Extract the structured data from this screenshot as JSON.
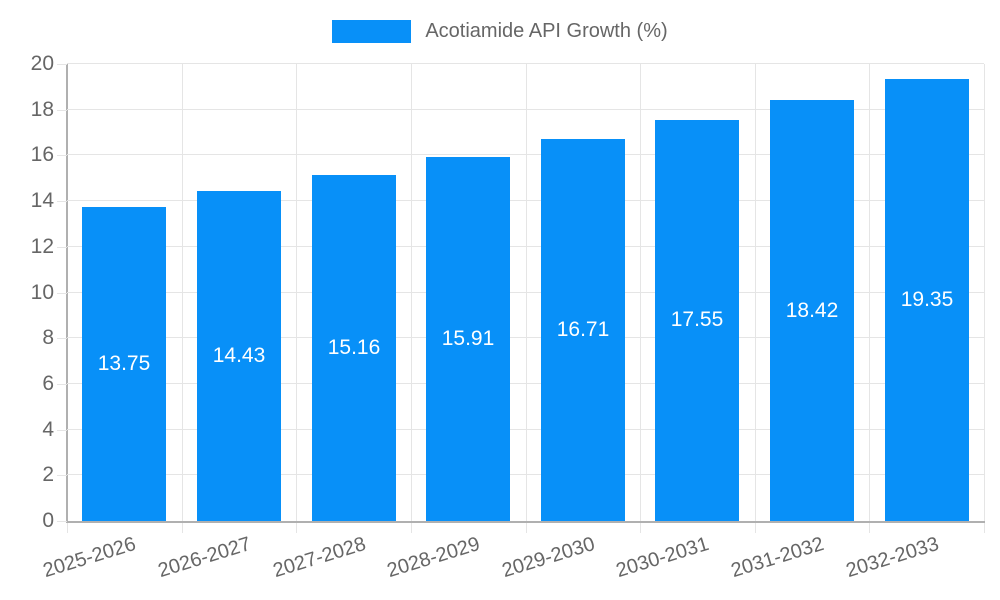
{
  "chart_data": {
    "type": "bar",
    "title": "Acotiamide API Growth (%)",
    "legend": [
      {
        "label": "Acotiamide API Growth (%)",
        "color": "#0890F8"
      }
    ],
    "legend_position": "top",
    "categories": [
      "2025-2026",
      "2026-2027",
      "2027-2028",
      "2028-2029",
      "2029-2030",
      "2030-2031",
      "2031-2032",
      "2032-2033"
    ],
    "series": [
      {
        "name": "Acotiamide API Growth (%)",
        "values": [
          13.75,
          14.43,
          15.16,
          15.91,
          16.71,
          17.55,
          18.42,
          19.35
        ]
      }
    ],
    "value_labels": [
      "13.75",
      "14.43",
      "15.16",
      "15.91",
      "16.71",
      "17.55",
      "18.42",
      "19.35"
    ],
    "xlabel": "",
    "ylabel": "",
    "ylim": [
      0,
      20
    ],
    "ytick_step": 2,
    "ytick_labels": [
      "0",
      "2",
      "4",
      "6",
      "8",
      "10",
      "12",
      "14",
      "16",
      "18",
      "20"
    ],
    "grid": true,
    "colors": {
      "bar": "#0890F8",
      "grid": "#E5E5E5",
      "axis": "#B0B0B0",
      "tick_text": "#666666",
      "value_text": "#FFFFFF",
      "background": "#FFFFFF"
    }
  }
}
